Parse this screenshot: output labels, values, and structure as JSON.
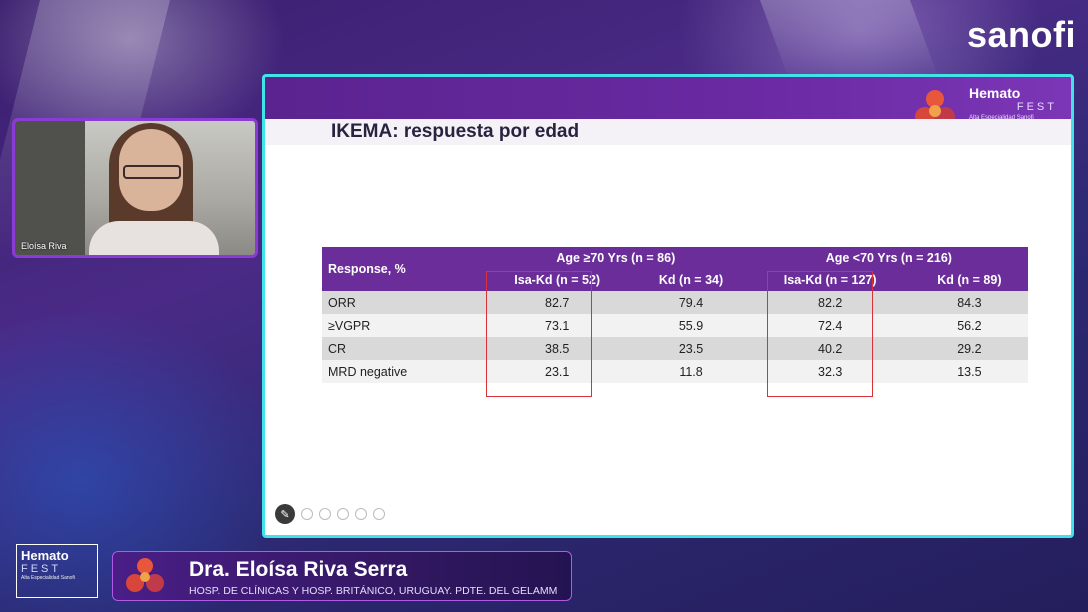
{
  "brand": {
    "name": "sanofi"
  },
  "camera": {
    "participant_name": "Eloísa Riva"
  },
  "slide": {
    "title": "IKEMA: respuesta por edad",
    "logo": {
      "line1": "Hemato",
      "line2": "FEST",
      "tagline": "Alta Especialidad Sanofi"
    },
    "table": {
      "row_header": "Response, %",
      "groups": [
        "Age ≥70 Yrs (n = 86)",
        "Age <70 Yrs (n = 216)"
      ],
      "columns": [
        "Isa-Kd (n = 52)",
        "Kd (n = 34)",
        "Isa-Kd (n = 127)",
        "Kd (n = 89)"
      ],
      "rows": [
        {
          "label": "ORR",
          "values": [
            "82.7",
            "79.4",
            "82.2",
            "84.3"
          ]
        },
        {
          "label": "≥VGPR",
          "values": [
            "73.1",
            "55.9",
            "72.4",
            "56.2"
          ]
        },
        {
          "label": "CR",
          "values": [
            "38.5",
            "23.5",
            "40.2",
            "29.2"
          ]
        },
        {
          "label": "MRD negative",
          "values": [
            "23.1",
            "11.8",
            "32.3",
            "13.5"
          ]
        }
      ],
      "highlight_color": "#d9303a",
      "header_color": "#6b2d99"
    }
  },
  "lower_third": {
    "logo": {
      "line1": "Hemato",
      "line2": "FEST",
      "tagline": "Alta Especialidad Sanofi"
    },
    "speaker_name": "Dra. Eloísa Riva Serra",
    "affiliation": "HOSP. DE CLÍNICAS Y HOSP. BRITÁNICO, URUGUAY.   PDTE. DEL GELAMM"
  }
}
